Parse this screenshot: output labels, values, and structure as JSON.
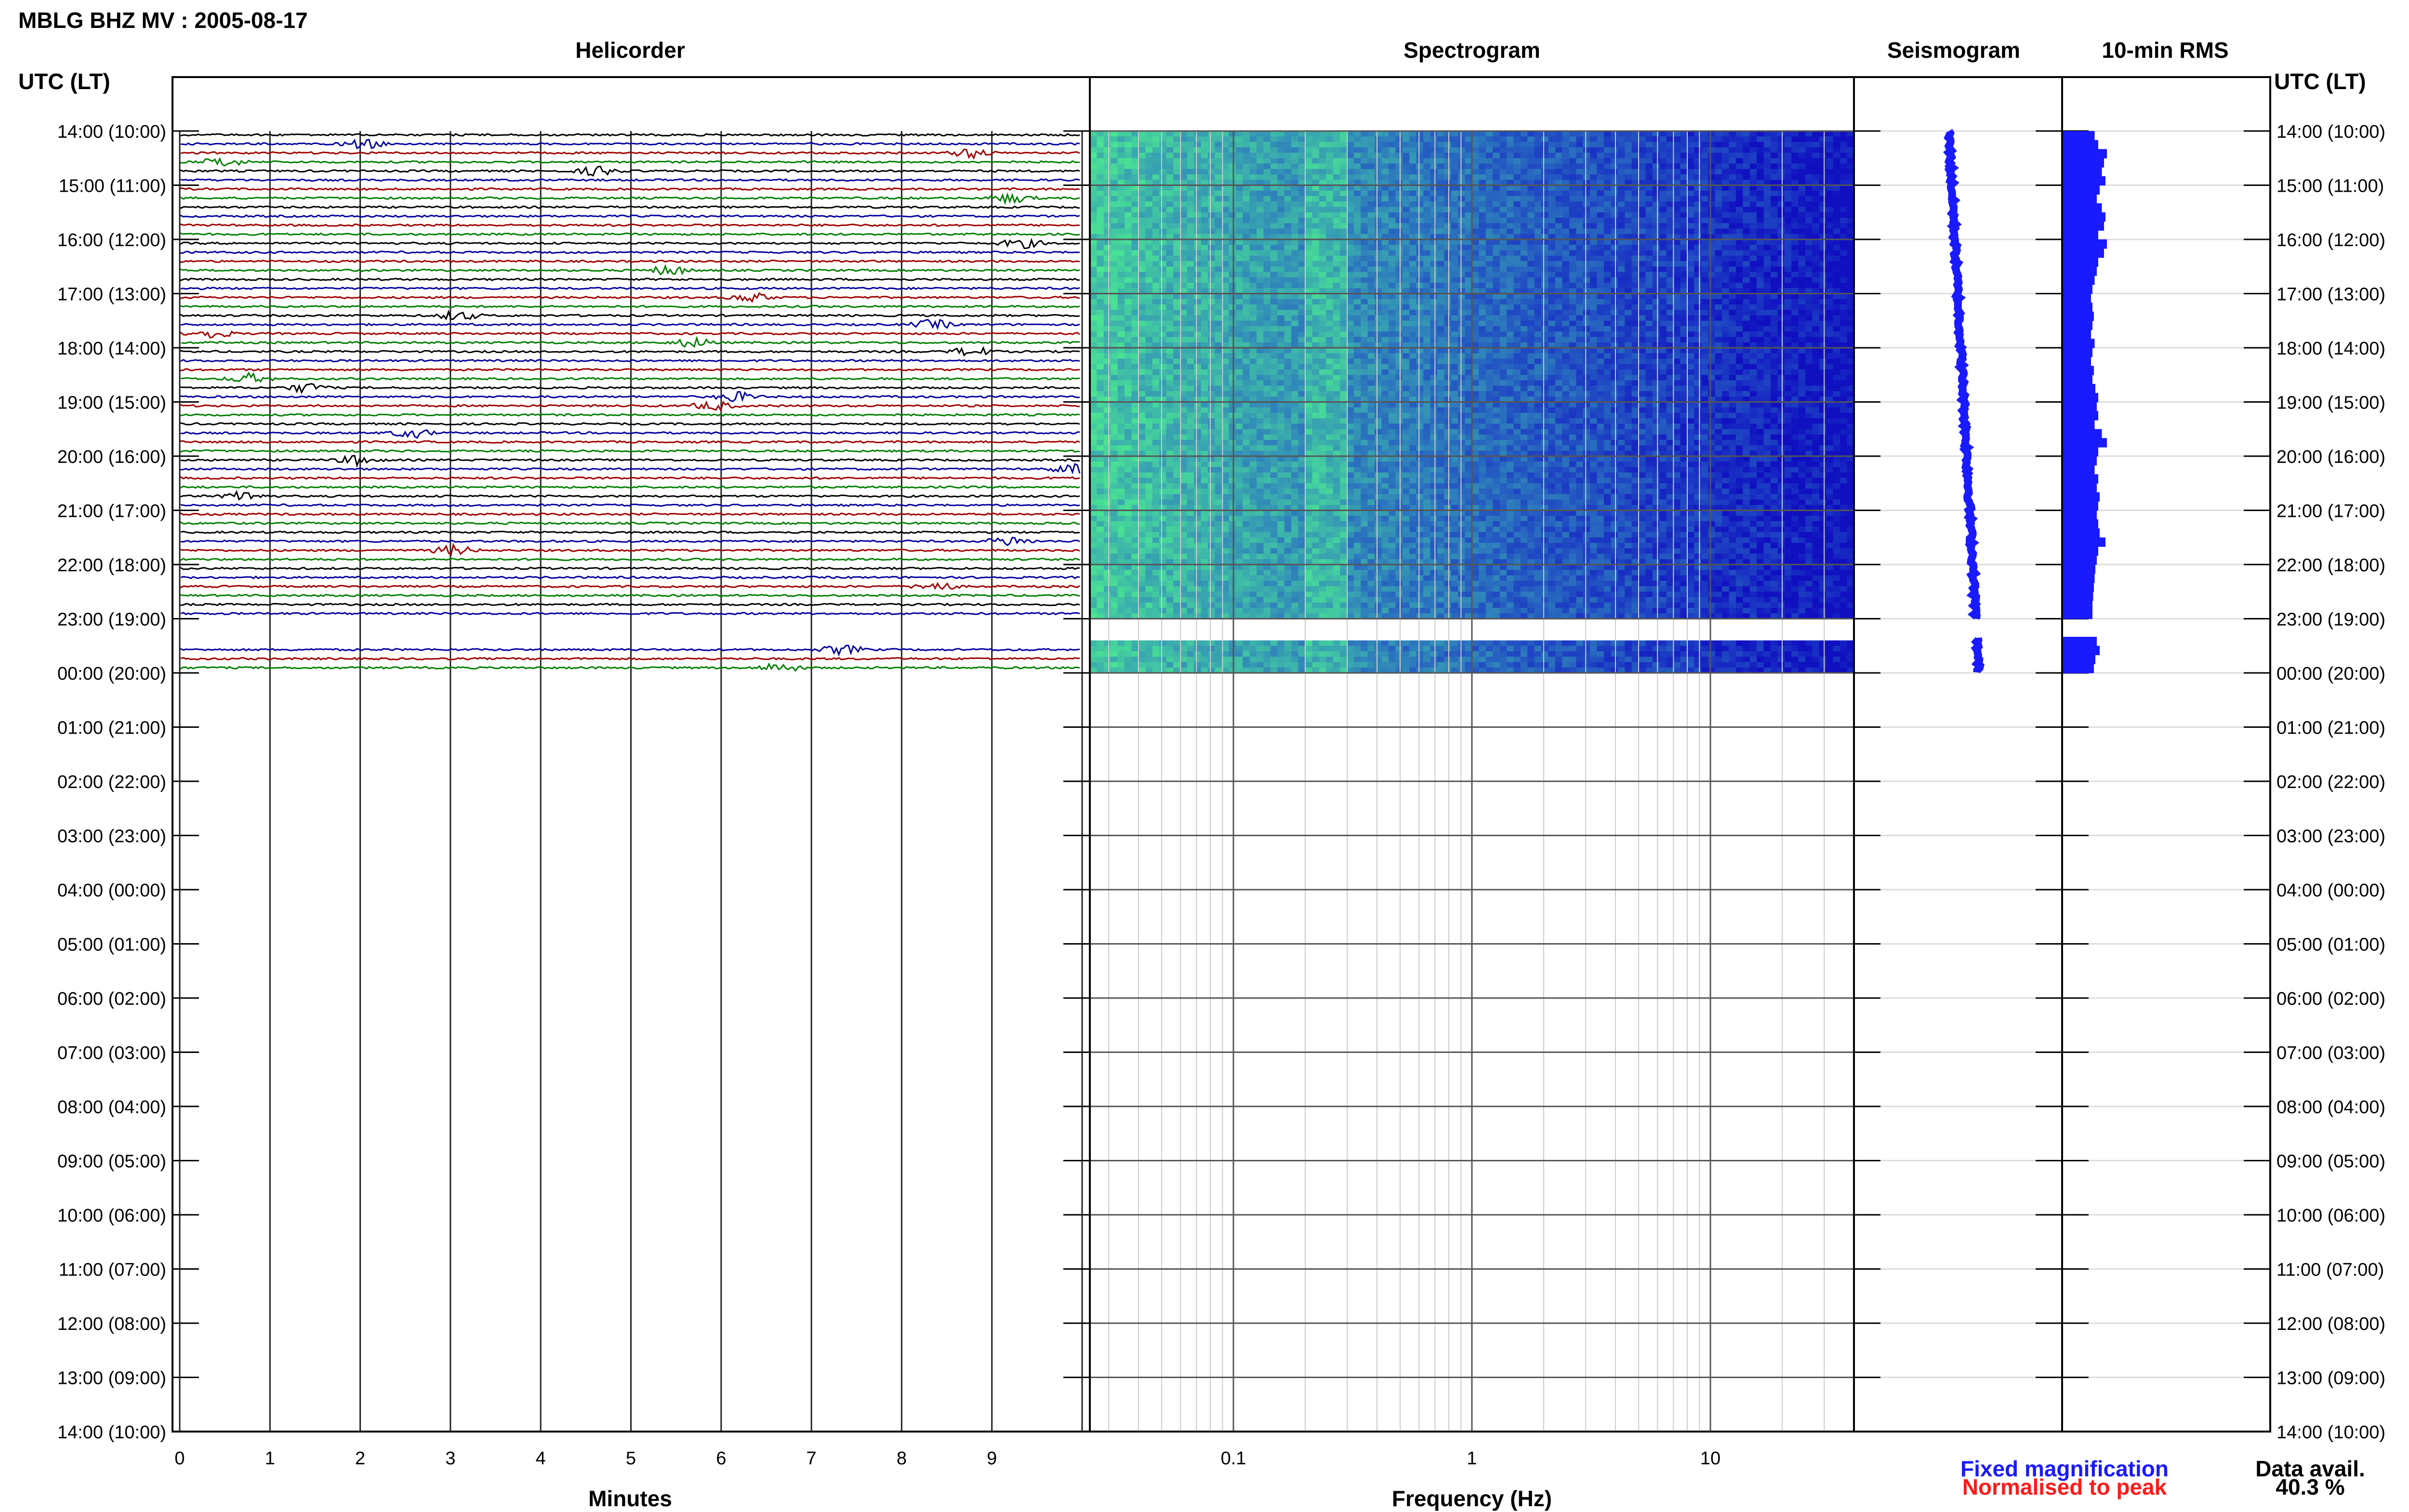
{
  "header": {
    "station": "MBLG BHZ MV : 2005-08-17",
    "time_axis_label": "UTC (LT)"
  },
  "panels": {
    "helicorder": "Helicorder",
    "spectrogram": "Spectrogram",
    "seismogram": "Seismogram",
    "rms": "10-min RMS"
  },
  "axes": {
    "minutes_label": "Minutes",
    "frequency_label": "Frequency (Hz)"
  },
  "legend": {
    "fixed": "Fixed magnification",
    "normalised": "Normalised to peak"
  },
  "data_avail": {
    "label": "Data avail.",
    "value": "40.3 %"
  },
  "colors": {
    "trace_cycle": [
      "#000000",
      "#0000a0",
      "#a00000",
      "#008000"
    ],
    "spectrogram_low": "#1010c0",
    "spectrogram_high": "#40f0a0",
    "seismogram": "#1a1aff",
    "rms": "#1a1aff"
  },
  "chart_data": {
    "type": "helicorder",
    "time_ticks": [
      "14:00 (10:00)",
      "15:00 (11:00)",
      "16:00 (12:00)",
      "17:00 (13:00)",
      "18:00 (14:00)",
      "19:00 (15:00)",
      "20:00 (16:00)",
      "21:00 (17:00)",
      "22:00 (18:00)",
      "23:00 (19:00)",
      "00:00 (20:00)",
      "01:00 (21:00)",
      "02:00 (22:00)",
      "03:00 (23:00)",
      "04:00 (00:00)",
      "05:00 (01:00)",
      "06:00 (02:00)",
      "07:00 (03:00)",
      "08:00 (04:00)",
      "09:00 (05:00)",
      "10:00 (06:00)",
      "11:00 (07:00)",
      "12:00 (08:00)",
      "13:00 (09:00)",
      "14:00 (10:00)"
    ],
    "minute_ticks": [
      "0",
      "1",
      "2",
      "3",
      "4",
      "5",
      "6",
      "7",
      "8",
      "9"
    ],
    "freq_ticks": [
      "0.1",
      "1",
      "10"
    ],
    "freq_range_hz": [
      0.025,
      40
    ],
    "data_hours": [
      0,
      10
    ],
    "gap_hours": [
      9.0,
      9.35
    ],
    "traces_per_hour": 6,
    "rms_10min": [
      0.45,
      0.5,
      0.62,
      0.58,
      0.55,
      0.6,
      0.52,
      0.48,
      0.55,
      0.6,
      0.58,
      0.5,
      0.62,
      0.58,
      0.5,
      0.48,
      0.45,
      0.42,
      0.4,
      0.42,
      0.44,
      0.42,
      0.4,
      0.45,
      0.42,
      0.4,
      0.44,
      0.42,
      0.46,
      0.5,
      0.48,
      0.5,
      0.45,
      0.55,
      0.62,
      0.5,
      0.48,
      0.45,
      0.5,
      0.48,
      0.52,
      0.5,
      0.48,
      0.5,
      0.52,
      0.6,
      0.5,
      0.48,
      0.46,
      0.45,
      0.44,
      0.43,
      0.42,
      0.42,
      0.0,
      0.0,
      0.48,
      0.52,
      0.46,
      0.44
    ]
  }
}
